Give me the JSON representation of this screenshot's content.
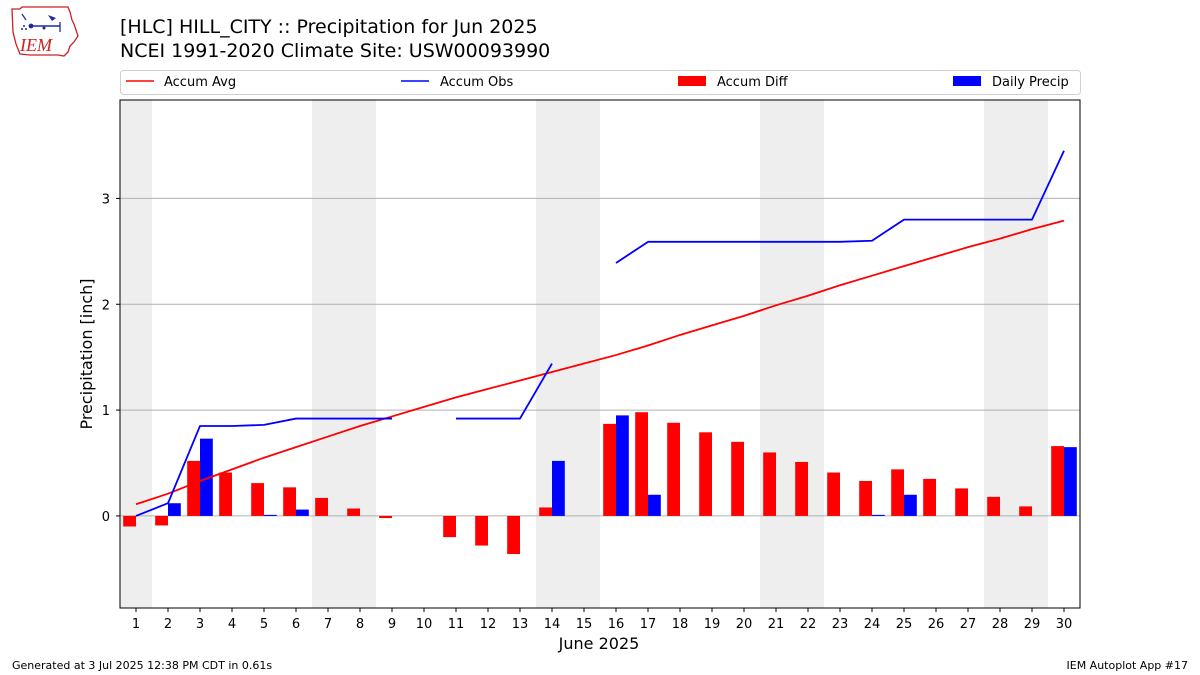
{
  "header": {
    "title_line1": "[HLC] HILL_CITY :: Precipitation for Jun 2025",
    "title_line2": "NCEI 1991-2020 Climate Site: USW00093990",
    "logo_text": "IEM"
  },
  "footer": {
    "generated": "Generated at 3 Jul 2025 12:38 PM CDT in 0.61s",
    "app": "IEM Autoplot App #17"
  },
  "chart_data": {
    "type": "bar",
    "xlabel": "June 2025",
    "ylabel": "Precipitation [inch]",
    "x": [
      1,
      2,
      3,
      4,
      5,
      6,
      7,
      8,
      9,
      10,
      11,
      12,
      13,
      14,
      15,
      16,
      17,
      18,
      19,
      20,
      21,
      22,
      23,
      24,
      25,
      26,
      27,
      28,
      29,
      30
    ],
    "xlim": [
      0.5,
      30.5
    ],
    "ylim": [
      -0.87,
      3.93
    ],
    "yticks": [
      0,
      1,
      2,
      3
    ],
    "grid": "horizontal",
    "legend_placement": "top",
    "weekend_shading": [
      [
        0.5,
        1.5
      ],
      [
        6.5,
        8.5
      ],
      [
        13.5,
        15.5
      ],
      [
        20.5,
        22.5
      ],
      [
        27.5,
        29.5
      ]
    ],
    "colors": {
      "accum_avg": "#ff0000",
      "accum_obs": "#0000ff",
      "accum_diff": "#ff0000",
      "daily_precip": "#0000ff",
      "shade": "#eeeeee",
      "grid": "#b0b0b0"
    },
    "series": [
      {
        "name": "Accum Avg",
        "kind": "line",
        "values": [
          0.11,
          0.21,
          0.33,
          0.44,
          0.55,
          0.65,
          0.75,
          0.85,
          0.94,
          1.03,
          1.12,
          1.2,
          1.28,
          1.36,
          1.44,
          1.52,
          1.61,
          1.71,
          1.8,
          1.89,
          1.99,
          2.08,
          2.18,
          2.27,
          2.36,
          2.45,
          2.54,
          2.62,
          2.71,
          2.79
        ]
      },
      {
        "name": "Accum Obs",
        "kind": "line",
        "values": [
          0.0,
          0.12,
          0.85,
          0.85,
          0.86,
          0.92,
          0.92,
          0.92,
          0.92,
          null,
          0.92,
          0.92,
          0.92,
          1.44,
          null,
          2.39,
          2.59,
          2.59,
          2.59,
          2.59,
          2.59,
          2.59,
          2.59,
          2.6,
          2.8,
          2.8,
          2.8,
          2.8,
          2.8,
          3.45
        ]
      },
      {
        "name": "Accum Diff",
        "kind": "bar",
        "values": [
          -0.1,
          -0.09,
          0.52,
          0.41,
          0.31,
          0.27,
          0.17,
          0.07,
          -0.02,
          null,
          -0.2,
          -0.28,
          -0.36,
          0.08,
          null,
          0.87,
          0.98,
          0.88,
          0.79,
          0.7,
          0.6,
          0.51,
          0.41,
          0.33,
          0.44,
          0.35,
          0.26,
          0.18,
          0.09,
          0.66
        ]
      },
      {
        "name": "Daily Precip",
        "kind": "bar",
        "values": [
          0.0,
          0.12,
          0.73,
          0.0,
          0.01,
          0.06,
          0.0,
          0.0,
          0.0,
          0.0,
          0.0,
          0.0,
          0.0,
          0.52,
          0.0,
          0.95,
          0.2,
          0.0,
          0.0,
          0.0,
          0.0,
          0.0,
          0.0,
          0.01,
          0.2,
          0.0,
          0.0,
          0.0,
          0.0,
          0.65
        ]
      }
    ]
  }
}
